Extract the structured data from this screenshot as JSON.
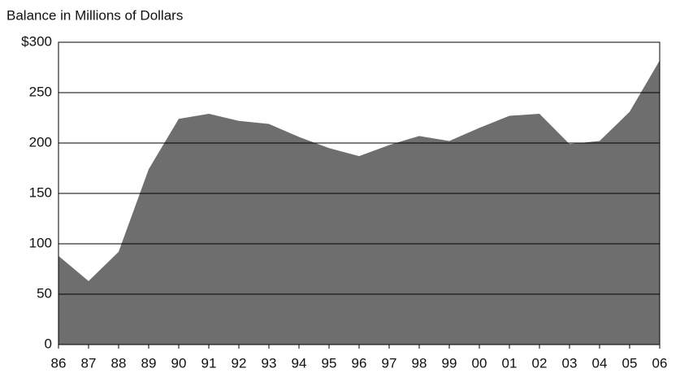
{
  "chart_data": {
    "type": "area",
    "title": "Balance in Millions of Dollars",
    "categories": [
      "86",
      "87",
      "88",
      "89",
      "90",
      "91",
      "92",
      "93",
      "94",
      "95",
      "96",
      "97",
      "98",
      "99",
      "00",
      "01",
      "02",
      "03",
      "04",
      "05",
      "06"
    ],
    "values": [
      88,
      63,
      92,
      174,
      224,
      229,
      222,
      219,
      206,
      195,
      187,
      198,
      207,
      202,
      215,
      227,
      229,
      199,
      202,
      231,
      282
    ],
    "color": "#6e6e6e",
    "ylim": [
      0,
      300
    ],
    "yticks": [
      0,
      50,
      100,
      150,
      200,
      250,
      {
        "value": 300,
        "label": "$300"
      }
    ],
    "grid": true
  }
}
